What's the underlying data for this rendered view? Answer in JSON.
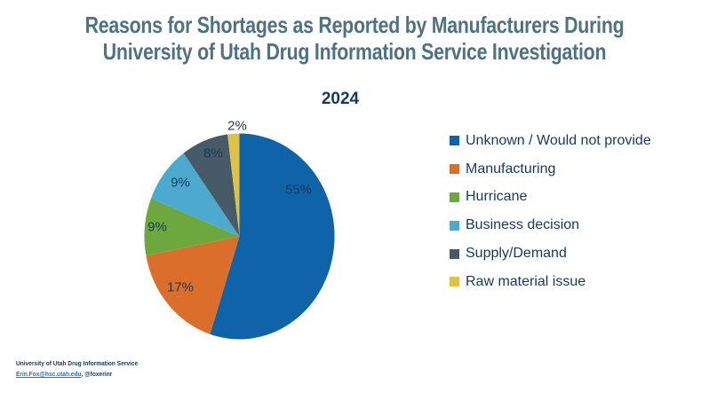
{
  "title": {
    "line1": "Reasons for Shortages as Reported by Manufacturers During",
    "line2": "University of Utah Drug Information Service Investigation"
  },
  "chart_data": {
    "type": "pie",
    "title": "2024",
    "unit": "%",
    "categories": [
      "Unknown / Would not provide",
      "Manufacturing",
      "Hurricane",
      "Business decision",
      "Supply/Demand",
      "Raw material issue"
    ],
    "values": [
      55,
      17,
      9,
      9,
      8,
      2
    ],
    "start_angle_deg": 0,
    "direction": "clockwise",
    "legend_position": "right",
    "data_labels_shown": true,
    "slices": [
      {
        "name": "Unknown / Would not provide",
        "value": 55,
        "value_label": "55%",
        "color": "#0E63A9"
      },
      {
        "name": "Manufacturing",
        "value": 17,
        "value_label": "17%",
        "color": "#DB6E2B"
      },
      {
        "name": "Hurricane",
        "value": 9,
        "value_label": "9%",
        "color": "#6CA83D"
      },
      {
        "name": "Business decision",
        "value": 9,
        "value_label": "9%",
        "color": "#4BAACE"
      },
      {
        "name": "Supply/Demand",
        "value": 8,
        "value_label": "8%",
        "color": "#475A67"
      },
      {
        "name": "Raw material issue",
        "value": 2,
        "value_label": "2%",
        "color": "#DFC243"
      }
    ]
  },
  "footer": {
    "line1": "University of Utah Drug Information Service",
    "email": "Erin.Fox@hsc.utah.edu",
    "handle_suffix": ", @foxerinr"
  },
  "colors": {
    "title_text": "#4E7282",
    "body_text": "#15395E",
    "link": "#2B6FC0",
    "background": "#FFFFFF"
  }
}
